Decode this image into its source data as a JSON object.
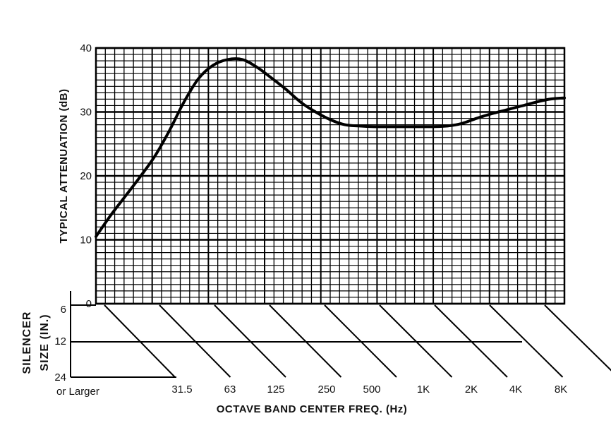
{
  "chart_data": {
    "type": "line",
    "ylabel": "TYPICAL ATTENUATION (dB)",
    "xlabel": "OCTAVE BAND CENTER FREQ. (Hz)",
    "ylim": [
      0,
      40
    ],
    "yticks": [
      "0",
      "10",
      "20",
      "30",
      "40"
    ],
    "grid": true,
    "x_categories": [
      "31.5",
      "63",
      "125",
      "250",
      "500",
      "1K",
      "2K",
      "4K",
      "8K"
    ],
    "x_tick_labels": [
      "31.5",
      "63",
      "125",
      "250",
      "500",
      "1K",
      "2K",
      "4K",
      "8K"
    ],
    "series": [
      {
        "x": [
          0.0,
          0.25,
          0.5,
          0.75,
          1.0,
          1.25,
          1.5,
          1.75,
          2.0,
          2.25,
          2.5,
          2.75,
          3.0,
          3.25,
          3.5,
          3.75,
          4.0,
          4.25,
          4.5,
          4.75,
          5.0,
          5.25,
          5.5,
          5.75,
          6.0,
          6.25,
          6.5,
          6.75,
          7.0,
          7.25,
          7.5,
          7.75,
          8.0
        ],
        "values": [
          10.5,
          13.8,
          16.8,
          19.8,
          23.0,
          27.0,
          31.5,
          35.2,
          37.3,
          38.2,
          38.2,
          37.0,
          35.3,
          33.5,
          31.5,
          30.0,
          28.8,
          28.0,
          27.8,
          27.7,
          27.7,
          27.7,
          27.7,
          27.7,
          27.8,
          28.2,
          29.0,
          29.7,
          30.3,
          30.9,
          31.5,
          32.0,
          32.2
        ]
      }
    ],
    "silencer_size": {
      "title": "SILENCER SIZE (IN.)",
      "ticks": [
        "6",
        "12",
        "24"
      ],
      "bottom_label": "or Larger"
    }
  }
}
